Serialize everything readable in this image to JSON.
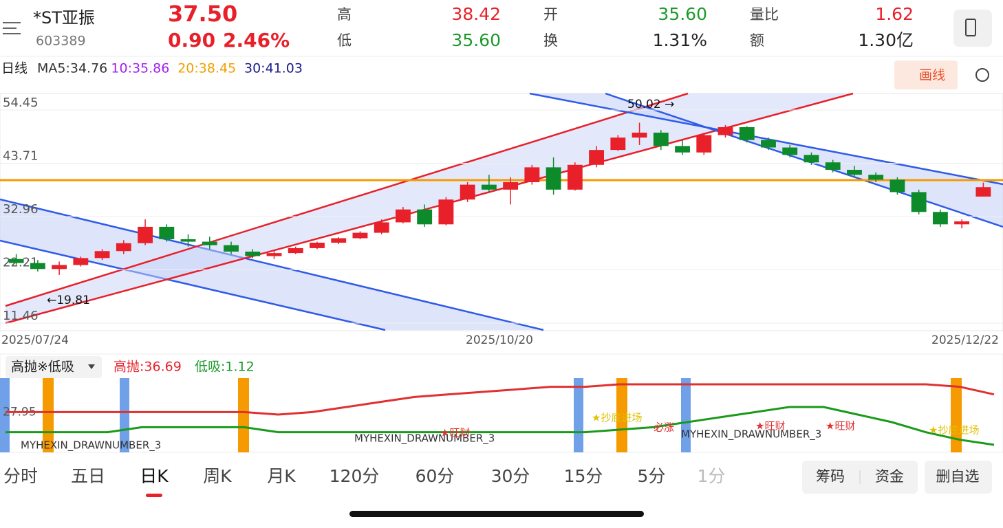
{
  "header": {
    "name": "*ST亚振",
    "code": "603389",
    "price": "37.50",
    "change": "0.90",
    "change_pct": "2.46%",
    "stats": [
      {
        "label": "高",
        "value": "38.42",
        "color": "#e8202a"
      },
      {
        "label": "开",
        "value": "35.60",
        "color": "#1a9a2a"
      },
      {
        "label": "量比",
        "value": "1.62",
        "color": "#e8202a"
      },
      {
        "label": "低",
        "value": "35.60",
        "color": "#1a9a2a"
      },
      {
        "label": "换",
        "value": "1.31%",
        "color": "#222222"
      },
      {
        "label": "额",
        "value": "1.30亿",
        "color": "#222222"
      }
    ]
  },
  "ma_bar": {
    "period": "日线",
    "items": [
      "MA5:34.76",
      "10:35.86",
      "20:38.45",
      "30:41.03"
    ],
    "colors": [
      "#333333",
      "#a020f0",
      "#f0a000",
      "#1a1a8c"
    ],
    "draw_button": "画线"
  },
  "price_chart": {
    "type": "candlestick",
    "ylim": [
      11.46,
      54.45
    ],
    "yticks": [
      54.45,
      43.71,
      32.96,
      22.21,
      11.46
    ],
    "dates": [
      "2025/07/24",
      "2025/10/20",
      "2025/12/22"
    ],
    "annotations": [
      "50.02 →",
      "←19.81"
    ],
    "candles": [
      [
        23,
        24,
        21.8,
        22.2
      ],
      [
        22.2,
        22.8,
        20.5,
        21
      ],
      [
        21,
        22.5,
        19.8,
        21.8
      ],
      [
        21.8,
        23.5,
        21.5,
        23.2
      ],
      [
        23.2,
        25,
        22.8,
        24.6
      ],
      [
        24.6,
        26.8,
        24,
        26.2
      ],
      [
        26.2,
        31,
        25.8,
        29.5
      ],
      [
        29.5,
        30,
        26.5,
        27
      ],
      [
        27,
        28,
        25.5,
        26.5
      ],
      [
        26.5,
        27.5,
        25,
        25.8
      ],
      [
        25.8,
        26.5,
        24,
        24.5
      ],
      [
        24.5,
        25,
        23.2,
        23.6
      ],
      [
        23.6,
        24.6,
        23,
        24.2
      ],
      [
        24.2,
        25.5,
        24,
        25.2
      ],
      [
        25.2,
        26.5,
        25,
        26.3
      ],
      [
        26.3,
        27.4,
        26,
        27.2
      ],
      [
        27.2,
        28.6,
        27,
        28.3
      ],
      [
        28.3,
        31,
        28,
        30.4
      ],
      [
        30.4,
        33.5,
        30.2,
        33
      ],
      [
        33,
        34,
        29.5,
        30
      ],
      [
        30,
        35.5,
        29.8,
        35
      ],
      [
        35,
        38.5,
        34.5,
        38
      ],
      [
        38,
        40,
        36.5,
        37
      ],
      [
        37,
        39.5,
        34,
        38.5
      ],
      [
        38.5,
        42,
        38,
        41.5
      ],
      [
        41.5,
        43.5,
        36,
        37
      ],
      [
        37,
        42.5,
        36.8,
        42
      ],
      [
        42,
        45.8,
        41.5,
        45
      ],
      [
        45,
        48,
        44.8,
        47.5
      ],
      [
        47.5,
        50.5,
        46,
        48.5
      ],
      [
        48.5,
        49,
        45,
        45.8
      ],
      [
        45.8,
        47,
        44,
        44.5
      ],
      [
        44.5,
        48.5,
        44,
        48
      ],
      [
        48,
        50.02,
        47.5,
        49.6
      ],
      [
        49.6,
        49.8,
        46.5,
        47
      ],
      [
        47,
        47.5,
        45,
        45.5
      ],
      [
        45.5,
        46,
        43.5,
        44
      ],
      [
        44,
        44.5,
        42,
        42.5
      ],
      [
        42.5,
        43,
        40.5,
        41
      ],
      [
        41,
        41.8,
        39.5,
        40
      ],
      [
        40,
        40.5,
        38.5,
        39
      ],
      [
        39,
        39.5,
        36,
        36.5
      ],
      [
        36.5,
        37,
        32,
        32.5
      ],
      [
        32.5,
        33,
        29.5,
        30
      ],
      [
        30,
        31,
        29.2,
        30.6
      ],
      [
        35.6,
        38.42,
        35.6,
        37.5
      ]
    ]
  },
  "indicator": {
    "selector": "高抛※低吸",
    "high_label": "高抛:36.69",
    "low_label": "低吸:1.12",
    "ylim": [
      12,
      42
    ],
    "yticks": [
      27.95
    ],
    "red": [
      28,
      28,
      28,
      28,
      28,
      28,
      28,
      28,
      27,
      28,
      30,
      32,
      34,
      35,
      36,
      37,
      38,
      38,
      39,
      39,
      39,
      39,
      39,
      39,
      39,
      39,
      39,
      39,
      38,
      35
    ],
    "green": [
      20,
      20,
      20,
      20,
      22,
      22,
      22,
      22,
      20,
      20,
      20,
      20,
      20,
      20,
      20,
      20,
      20,
      20,
      21,
      22,
      24,
      26,
      28,
      30,
      30,
      27,
      24,
      20,
      17,
      15
    ],
    "labels": [
      "MYHEXIN_DRAWNUMBER_3",
      "★旺财",
      "必涨",
      "★抄底进场"
    ]
  },
  "tabs": [
    "分时",
    "五日",
    "日K",
    "周K",
    "月K",
    "120分",
    "60分",
    "30分",
    "15分",
    "5分",
    "1分"
  ],
  "buttons": [
    "筹码",
    "资金",
    "删自选"
  ]
}
